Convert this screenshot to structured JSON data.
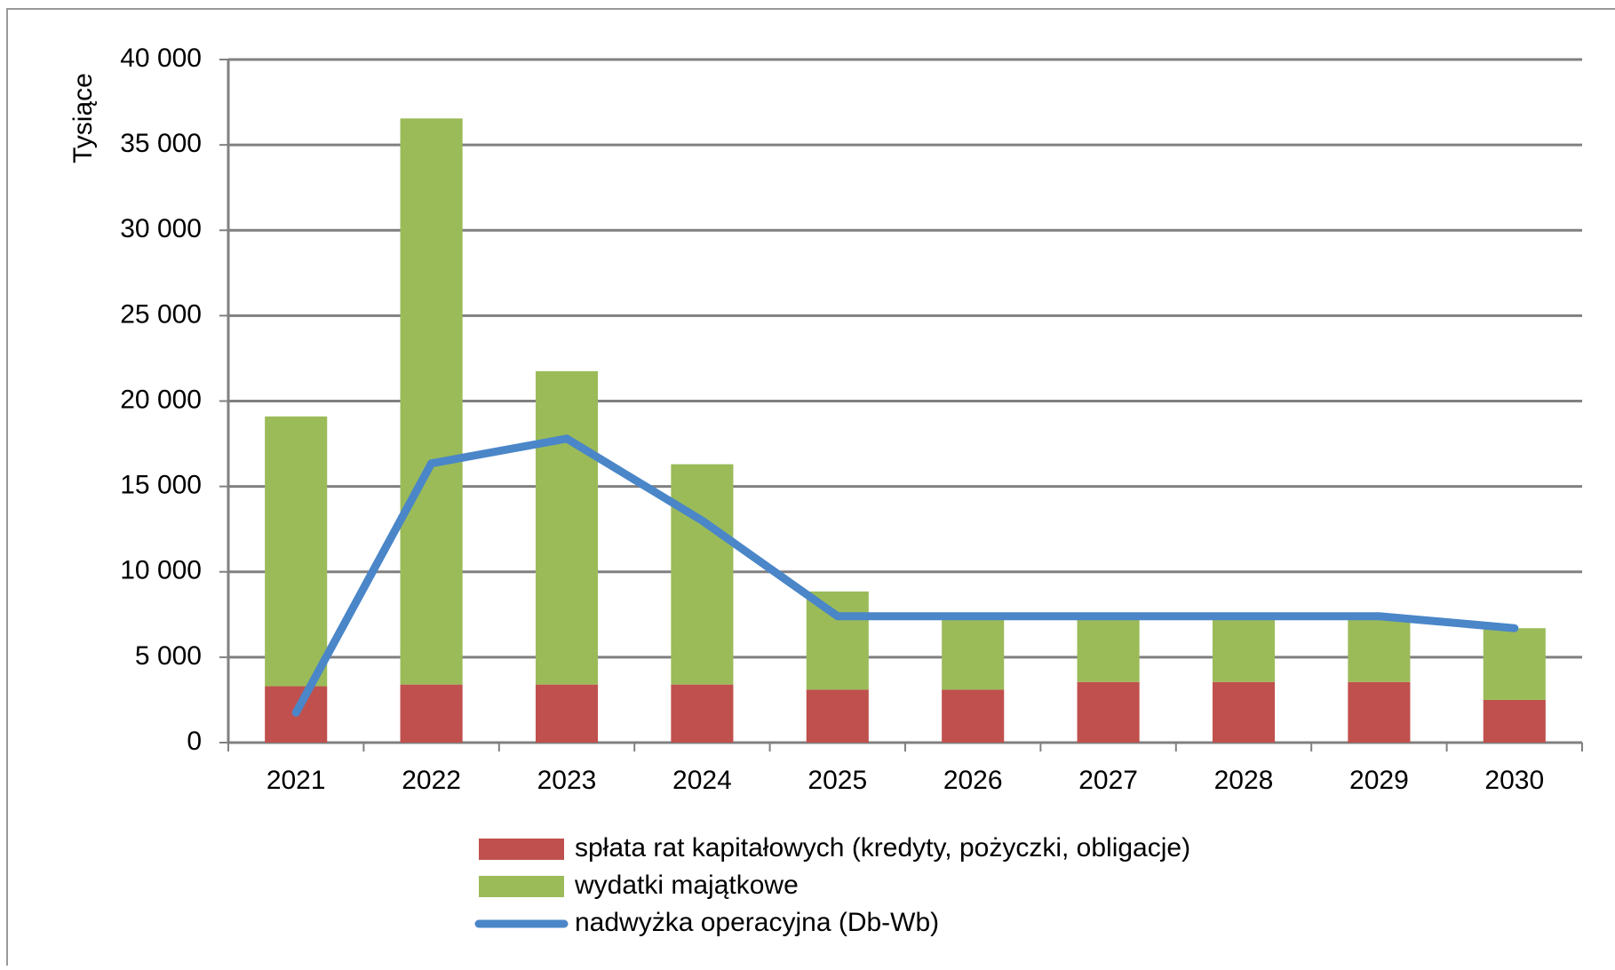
{
  "chart_data": {
    "type": "bar",
    "stacked": true,
    "y_label": "Tysiące",
    "categories": [
      "2021",
      "2022",
      "2023",
      "2024",
      "2025",
      "2026",
      "2027",
      "2028",
      "2029",
      "2030"
    ],
    "series": [
      {
        "name": "spłata rat kapitałowych (kredyty, pożyczki, obligacje)",
        "type": "bar",
        "color": "#c0504d",
        "values": [
          3300,
          3400,
          3400,
          3400,
          3100,
          3100,
          3550,
          3550,
          3550,
          2500
        ]
      },
      {
        "name": "wydatki majątkowe",
        "type": "bar",
        "color": "#9bbb59",
        "values": [
          15800,
          33150,
          18350,
          12900,
          5750,
          4200,
          3750,
          3750,
          3750,
          4200
        ]
      },
      {
        "name": "nadwyżka operacyjna (Db-Wb)",
        "type": "line",
        "color": "#4a86c8",
        "values": [
          1750,
          16350,
          17800,
          13000,
          7400,
          7400,
          7400,
          7400,
          7400,
          6700
        ]
      }
    ],
    "ylim": [
      0,
      40000
    ],
    "yticks": [
      0,
      {
        "value": 5000,
        "label": "5 000"
      },
      {
        "value": 10000,
        "label": "10 000"
      },
      {
        "value": 15000,
        "label": "15 000"
      },
      {
        "value": 20000,
        "label": "20 000"
      },
      {
        "value": 25000,
        "label": "25 000"
      },
      {
        "value": 30000,
        "label": "30 000"
      },
      {
        "value": 35000,
        "label": "35 000"
      },
      {
        "value": 40000,
        "label": "40 000"
      }
    ],
    "grid": true,
    "legend": "bottom"
  }
}
